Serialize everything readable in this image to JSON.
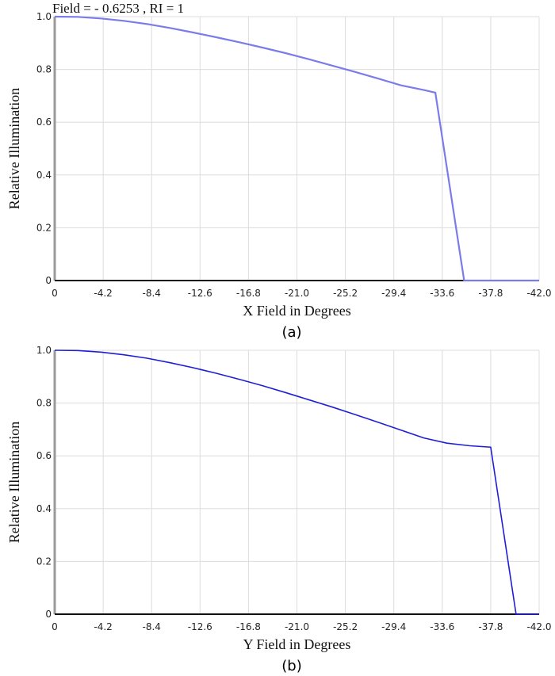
{
  "readout": "Field = - 0.6253 ,  RI = 1",
  "chart_data": [
    {
      "type": "line",
      "panel_label": "(a)",
      "xlabel": "X Field in Degrees",
      "ylabel": "Relative Illumination",
      "xlim": [
        0,
        -42.0
      ],
      "ylim": [
        0,
        1.0
      ],
      "x_ticks": [
        "0",
        "-4.2",
        "-8.4",
        "-12.6",
        "-16.8",
        "-21.0",
        "-25.2",
        "-29.4",
        "-33.6",
        "-37.8",
        "-42.0"
      ],
      "y_ticks": [
        "0",
        "0.2",
        "0.4",
        "0.6",
        "0.8",
        "1.0"
      ],
      "grid": true,
      "line_color": "#7b7bea",
      "series": [
        {
          "x": [
            0,
            -2,
            -4,
            -6,
            -8,
            -10,
            -12,
            -14,
            -16,
            -18,
            -20,
            -22,
            -24,
            -26,
            -28,
            -30,
            -32,
            -33,
            -35.5,
            -36,
            -38,
            -40,
            -42
          ],
          "y": [
            1.0,
            0.999,
            0.993,
            0.984,
            0.972,
            0.957,
            0.94,
            0.922,
            0.903,
            0.883,
            0.862,
            0.839,
            0.815,
            0.791,
            0.766,
            0.74,
            0.722,
            0.712,
            0.0,
            0.0,
            0.0,
            0.0,
            0.0
          ]
        }
      ]
    },
    {
      "type": "line",
      "panel_label": "(b)",
      "xlabel": "Y Field in Degrees",
      "ylabel": "Relative Illumination",
      "xlim": [
        0,
        -42.0
      ],
      "ylim": [
        0,
        1.0
      ],
      "x_ticks": [
        "0",
        "-4.2",
        "-8.4",
        "-12.6",
        "-16.8",
        "-21.0",
        "-25.2",
        "-29.4",
        "-33.6",
        "-37.8",
        "-42.0"
      ],
      "y_ticks": [
        "0",
        "0.2",
        "0.4",
        "0.6",
        "0.8",
        "1.0"
      ],
      "grid": true,
      "line_color": "#1f1fd6",
      "series": [
        {
          "x": [
            0,
            -2,
            -4,
            -6,
            -8,
            -10,
            -12,
            -14,
            -16,
            -18,
            -20,
            -22,
            -24,
            -26,
            -28,
            -30,
            -32,
            -34,
            -36,
            -37.8,
            -40,
            -40.5,
            -42
          ],
          "y": [
            1.0,
            0.999,
            0.993,
            0.983,
            0.97,
            0.953,
            0.934,
            0.913,
            0.89,
            0.866,
            0.84,
            0.813,
            0.786,
            0.757,
            0.728,
            0.698,
            0.668,
            0.648,
            0.638,
            0.633,
            0.0,
            0.0,
            0.0
          ]
        }
      ]
    }
  ]
}
